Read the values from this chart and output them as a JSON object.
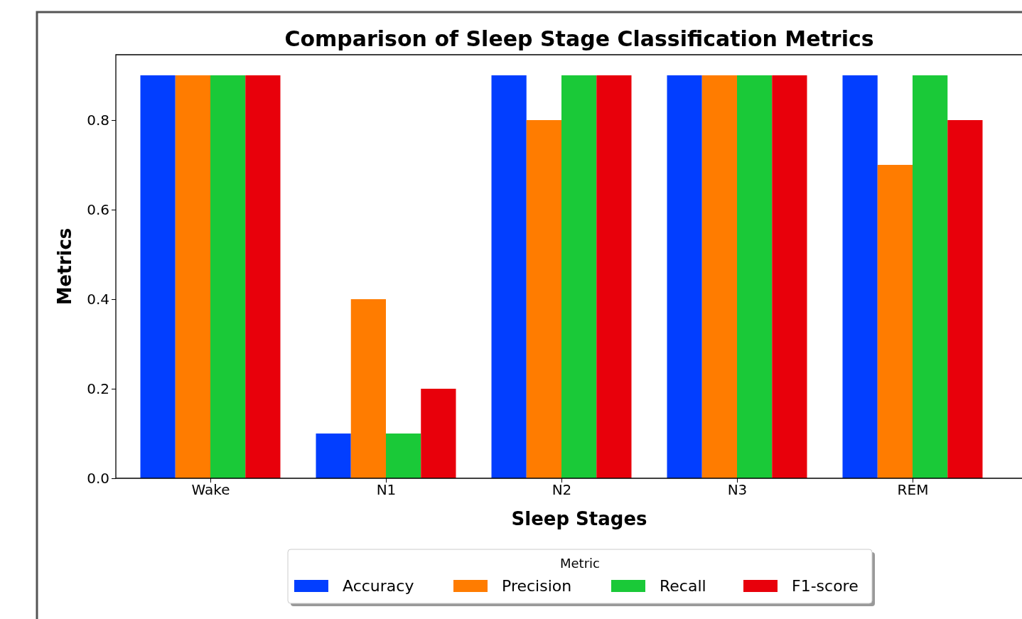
{
  "chart_data": {
    "type": "bar",
    "title": "Comparison of Sleep Stage Classification Metrics",
    "xlabel": "Sleep Stages",
    "ylabel": "Metrics",
    "legend_title": "Metric",
    "categories": [
      "Wake",
      "N1",
      "N2",
      "N3",
      "REM"
    ],
    "series": [
      {
        "name": "Accuracy",
        "color": "#023eff",
        "values": [
          0.9,
          0.1,
          0.9,
          0.9,
          0.9
        ]
      },
      {
        "name": "Precision",
        "color": "#ff7c00",
        "values": [
          0.9,
          0.4,
          0.8,
          0.9,
          0.7
        ]
      },
      {
        "name": "Recall",
        "color": "#1ac938",
        "values": [
          0.9,
          0.1,
          0.9,
          0.9,
          0.9
        ]
      },
      {
        "name": "F1-score",
        "color": "#e8000b",
        "values": [
          0.9,
          0.2,
          0.9,
          0.9,
          0.8
        ]
      }
    ],
    "ylim": [
      0,
      0.946
    ],
    "yticks": [
      {
        "value": 0,
        "label": "0.0"
      },
      {
        "value": 0.2,
        "label": "0.2"
      },
      {
        "value": 0.4,
        "label": "0.4"
      },
      {
        "value": 0.6,
        "label": "0.6"
      },
      {
        "value": 0.8,
        "label": "0.8"
      }
    ],
    "legend": "bottom",
    "grid": false
  }
}
